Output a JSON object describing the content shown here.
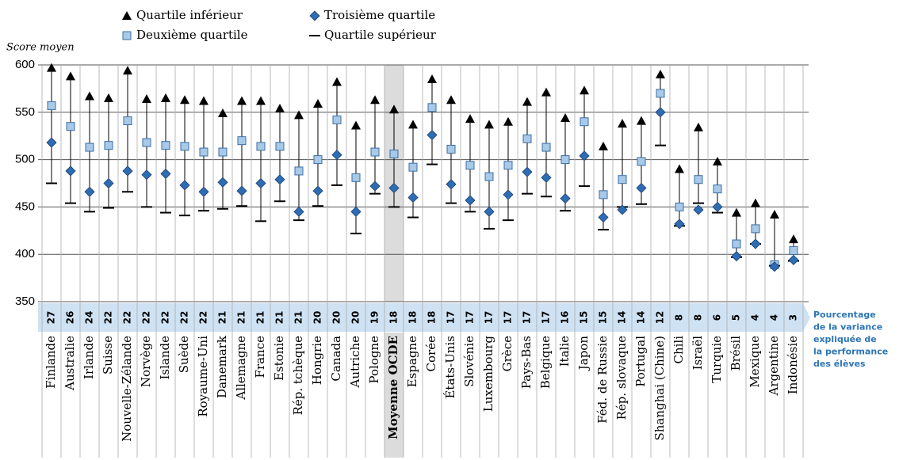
{
  "chart_data": {
    "type": "range-dot",
    "y_axis_label": "Score moyen",
    "categories": [
      "Finlande",
      "Australie",
      "Irlande",
      "Suisse",
      "Nouvelle-Zélande",
      "Norvège",
      "Islande",
      "Suède",
      "Royaume-Uni",
      "Danemark",
      "Allemagne",
      "France",
      "Estonie",
      "Rép. tchèque",
      "Hongrie",
      "Canada",
      "Autriche",
      "Pologne",
      "Moyenne OCDE",
      "Espagne",
      "Corée",
      "États-Unis",
      "Slovénie",
      "Luxembourg",
      "Grèce",
      "Pays-Bas",
      "Belgique",
      "Italie",
      "Japon",
      "Féd. de Russie",
      "Rép. slovaque",
      "Portugal",
      "Shanghai (Chine)",
      "Chili",
      "Israël",
      "Turquie",
      "Brésil",
      "Mexique",
      "Argentine",
      "Indonésie"
    ],
    "highlight_index": 18,
    "series": [
      {
        "name": "Quartile inférieur",
        "marker": "triangle",
        "color": "#000000",
        "values": [
          597,
          588,
          567,
          565,
          594,
          564,
          565,
          563,
          562,
          549,
          562,
          562,
          554,
          547,
          559,
          582,
          536,
          563,
          553,
          537,
          585,
          563,
          543,
          537,
          540,
          561,
          571,
          544,
          573,
          514,
          538,
          541,
          590,
          490,
          534,
          498,
          444,
          454,
          442,
          416
        ]
      },
      {
        "name": "Deuxième quartile",
        "marker": "square",
        "color": "#a9c9e8",
        "values": [
          557,
          535,
          513,
          515,
          541,
          518,
          515,
          514,
          508,
          508,
          520,
          514,
          514,
          488,
          500,
          542,
          481,
          508,
          506,
          492,
          555,
          511,
          494,
          482,
          494,
          522,
          513,
          500,
          540,
          463,
          479,
          498,
          570,
          450,
          479,
          469,
          411,
          427,
          389,
          404
        ]
      },
      {
        "name": "Troisième quartile",
        "marker": "diamond",
        "color": "#2e6db4",
        "values": [
          518,
          488,
          466,
          475,
          488,
          484,
          485,
          473,
          466,
          476,
          467,
          475,
          479,
          445,
          467,
          505,
          445,
          472,
          470,
          460,
          526,
          474,
          457,
          445,
          463,
          487,
          481,
          459,
          504,
          439,
          447,
          470,
          550,
          432,
          447,
          450,
          398,
          411,
          387,
          394
        ]
      },
      {
        "name": "Quartile supérieur",
        "marker": "dash",
        "color": "#000000",
        "values": [
          475,
          454,
          445,
          449,
          466,
          450,
          444,
          441,
          446,
          448,
          451,
          435,
          456,
          436,
          451,
          473,
          422,
          464,
          450,
          439,
          495,
          454,
          445,
          427,
          436,
          464,
          461,
          446,
          472,
          426,
          450,
          453,
          515,
          430,
          454,
          444,
          397,
          411,
          388,
          393
        ]
      }
    ],
    "variance": [
      27,
      26,
      24,
      22,
      22,
      22,
      22,
      22,
      22,
      21,
      21,
      21,
      21,
      21,
      20,
      20,
      20,
      19,
      18,
      18,
      18,
      17,
      17,
      17,
      17,
      17,
      17,
      16,
      15,
      15,
      14,
      14,
      12,
      8,
      8,
      6,
      5,
      4,
      4,
      3
    ],
    "variance_colors": [
      "#000",
      "#000",
      "#000",
      "#000",
      "#000",
      "#000",
      "#000",
      "#000",
      "#000",
      "#000",
      "#000",
      "#000",
      "#000",
      "#000",
      "#000",
      "#000",
      "#000",
      "#000",
      "#000",
      "#000",
      "#000",
      "#000",
      "#000",
      "#000",
      "#000",
      "#000",
      "#000",
      "#000",
      "#000",
      "#2e75b6",
      "#000",
      "#000",
      "#2e75b6",
      "#000",
      "#000",
      "#000",
      "#2e75b6",
      "#000",
      "#2e75b6",
      "#2e75b6"
    ],
    "variance_label": [
      "Pourcentage",
      "de la variance",
      "expliquée de",
      "la performance",
      "des élèves"
    ],
    "ylim": [
      350,
      600
    ],
    "yticks": [
      350,
      400,
      450,
      500,
      550,
      600
    ],
    "grid": true
  }
}
